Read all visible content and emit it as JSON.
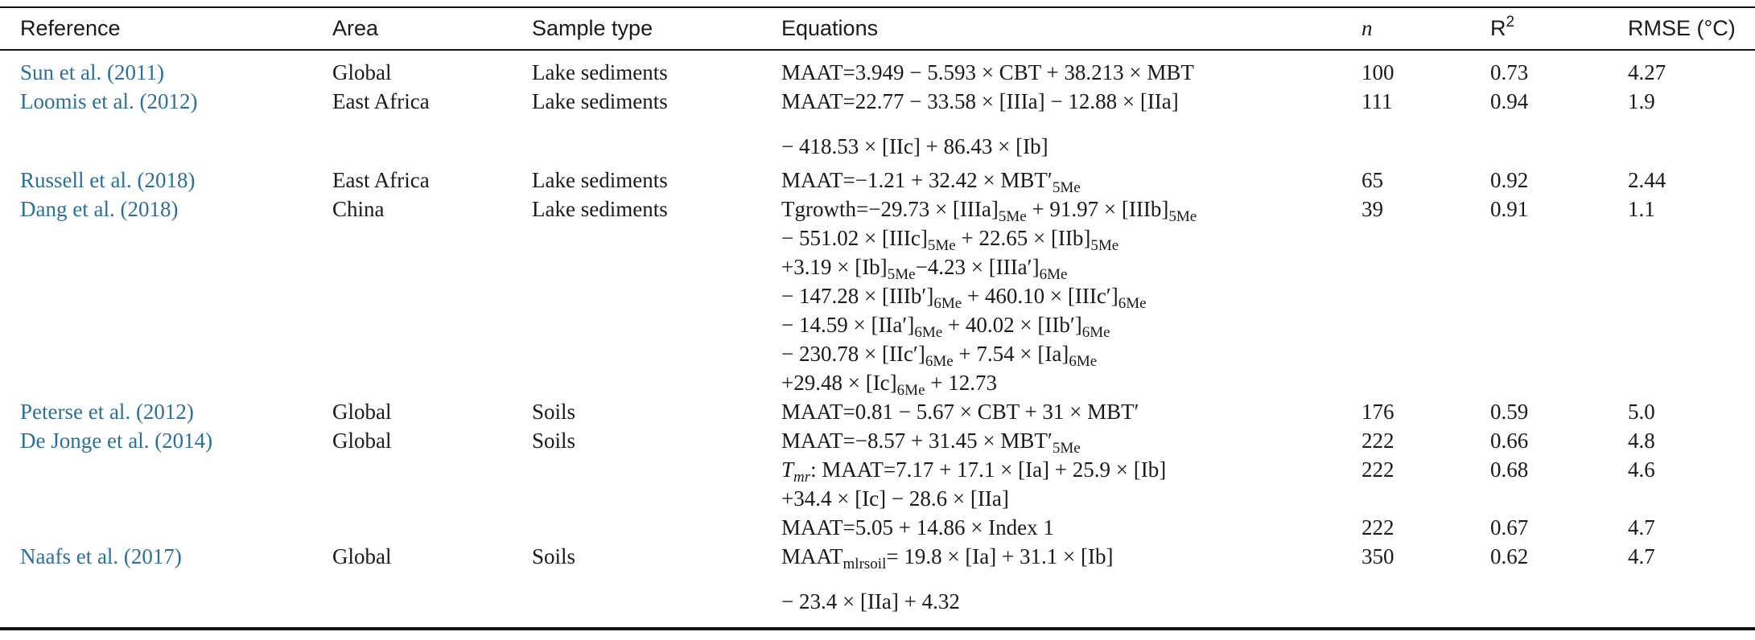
{
  "table": {
    "headers": {
      "reference": "Reference",
      "area": "Area",
      "sample_type": "Sample type",
      "equations": "Equations",
      "n": "n",
      "r2_base": "R",
      "r2_sup": "2",
      "rmse": "RMSE (°C)"
    },
    "rows": [
      {
        "reference": "Sun et al. (2011)",
        "area": "Global",
        "sample_type": "Lake sediments",
        "n": "100",
        "r2": "0.73",
        "rmse": "4.27"
      },
      {
        "reference": "Loomis et al. (2012)",
        "area": "East Africa",
        "sample_type": "Lake sediments",
        "n": "111",
        "r2": "0.94",
        "rmse": "1.9"
      },
      {
        "reference": "Russell et al. (2018)",
        "area": "East Africa",
        "sample_type": "Lake sediments",
        "n": "65",
        "r2": "0.92",
        "rmse": "2.44"
      },
      {
        "reference": "Dang et al. (2018)",
        "area": "China",
        "sample_type": "Lake sediments",
        "n": "39",
        "r2": "0.91",
        "rmse": "1.1"
      },
      {
        "reference": "Peterse et al. (2012)",
        "area": "Global",
        "sample_type": "Soils",
        "n": "176",
        "r2": "0.59",
        "rmse": "5.0"
      },
      {
        "reference": "De Jonge et al. (2014)",
        "area": "Global",
        "sample_type": "Soils",
        "n": "222",
        "r2": "0.66",
        "rmse": "4.8"
      },
      {
        "reference": "",
        "area": "",
        "sample_type": "",
        "n": "222",
        "r2": "0.68",
        "rmse": "4.6"
      },
      {
        "reference": "",
        "area": "",
        "sample_type": "",
        "n": "222",
        "r2": "0.67",
        "rmse": "4.7"
      },
      {
        "reference": "Naafs et al. (2017)",
        "area": "Global",
        "sample_type": "Soils",
        "n": "350",
        "r2": "0.62",
        "rmse": "4.7"
      }
    ],
    "equations": {
      "sun": "MAAT=3.949 − 5.593 × CBT + 38.213 × MBT",
      "loomis_1": "MAAT=22.77 − 33.58 × [IIIa] − 12.88 × [IIa]",
      "loomis_2": "− 418.53 × [IIc] + 86.43 × [Ib]",
      "russell": "MAAT=−1.21 + 32.42 × MBT′",
      "dang_1_a": "Tgrowth=−29.73 × [IIIa]",
      "dang_1_b": " + 91.97 × [IIIb]",
      "dang_2_a": "− 551.02 × [IIIc]",
      "dang_2_b": " + 22.65 × [IIb]",
      "dang_3_a": "+3.19 × [Ib]",
      "dang_3_b": "−4.23 × [IIIa′]",
      "dang_4_a": "− 147.28 × [IIIb′]",
      "dang_4_b": " + 460.10 × [IIIc′]",
      "dang_5_a": "− 14.59 × [IIa′]",
      "dang_5_b": " + 40.02 × [IIb′]",
      "dang_6_a": "− 230.78 × [IIc′]",
      "dang_6_b": " + 7.54 × [Ia]",
      "dang_7_a": "+29.48 × [Ic]",
      "dang_7_b": " + 12.73",
      "peterse": "MAAT=0.81 − 5.67 × CBT + 31 × MBT′",
      "dejonge_1": "MAAT=−8.57 + 31.45 × MBT′",
      "dejonge_2_var": "T",
      "dejonge_2_sub": "mr",
      "dejonge_2_rest": ": MAAT=7.17 + 17.1 × [Ia] + 25.9 × [Ib]",
      "dejonge_3": "+34.4 × [Ic] − 28.6 × [IIa]",
      "dejonge_4": "MAAT=5.05 + 14.86 × Index 1",
      "naafs_1_a": "MAAT",
      "naafs_1_sub": "mlrsoil",
      "naafs_1_b": "= 19.8 × [Ia] + 31.1 × [Ib]",
      "naafs_2": "− 23.4 × [IIa] + 4.32",
      "sub_5me": "5Me",
      "sub_6me": "6Me"
    }
  }
}
